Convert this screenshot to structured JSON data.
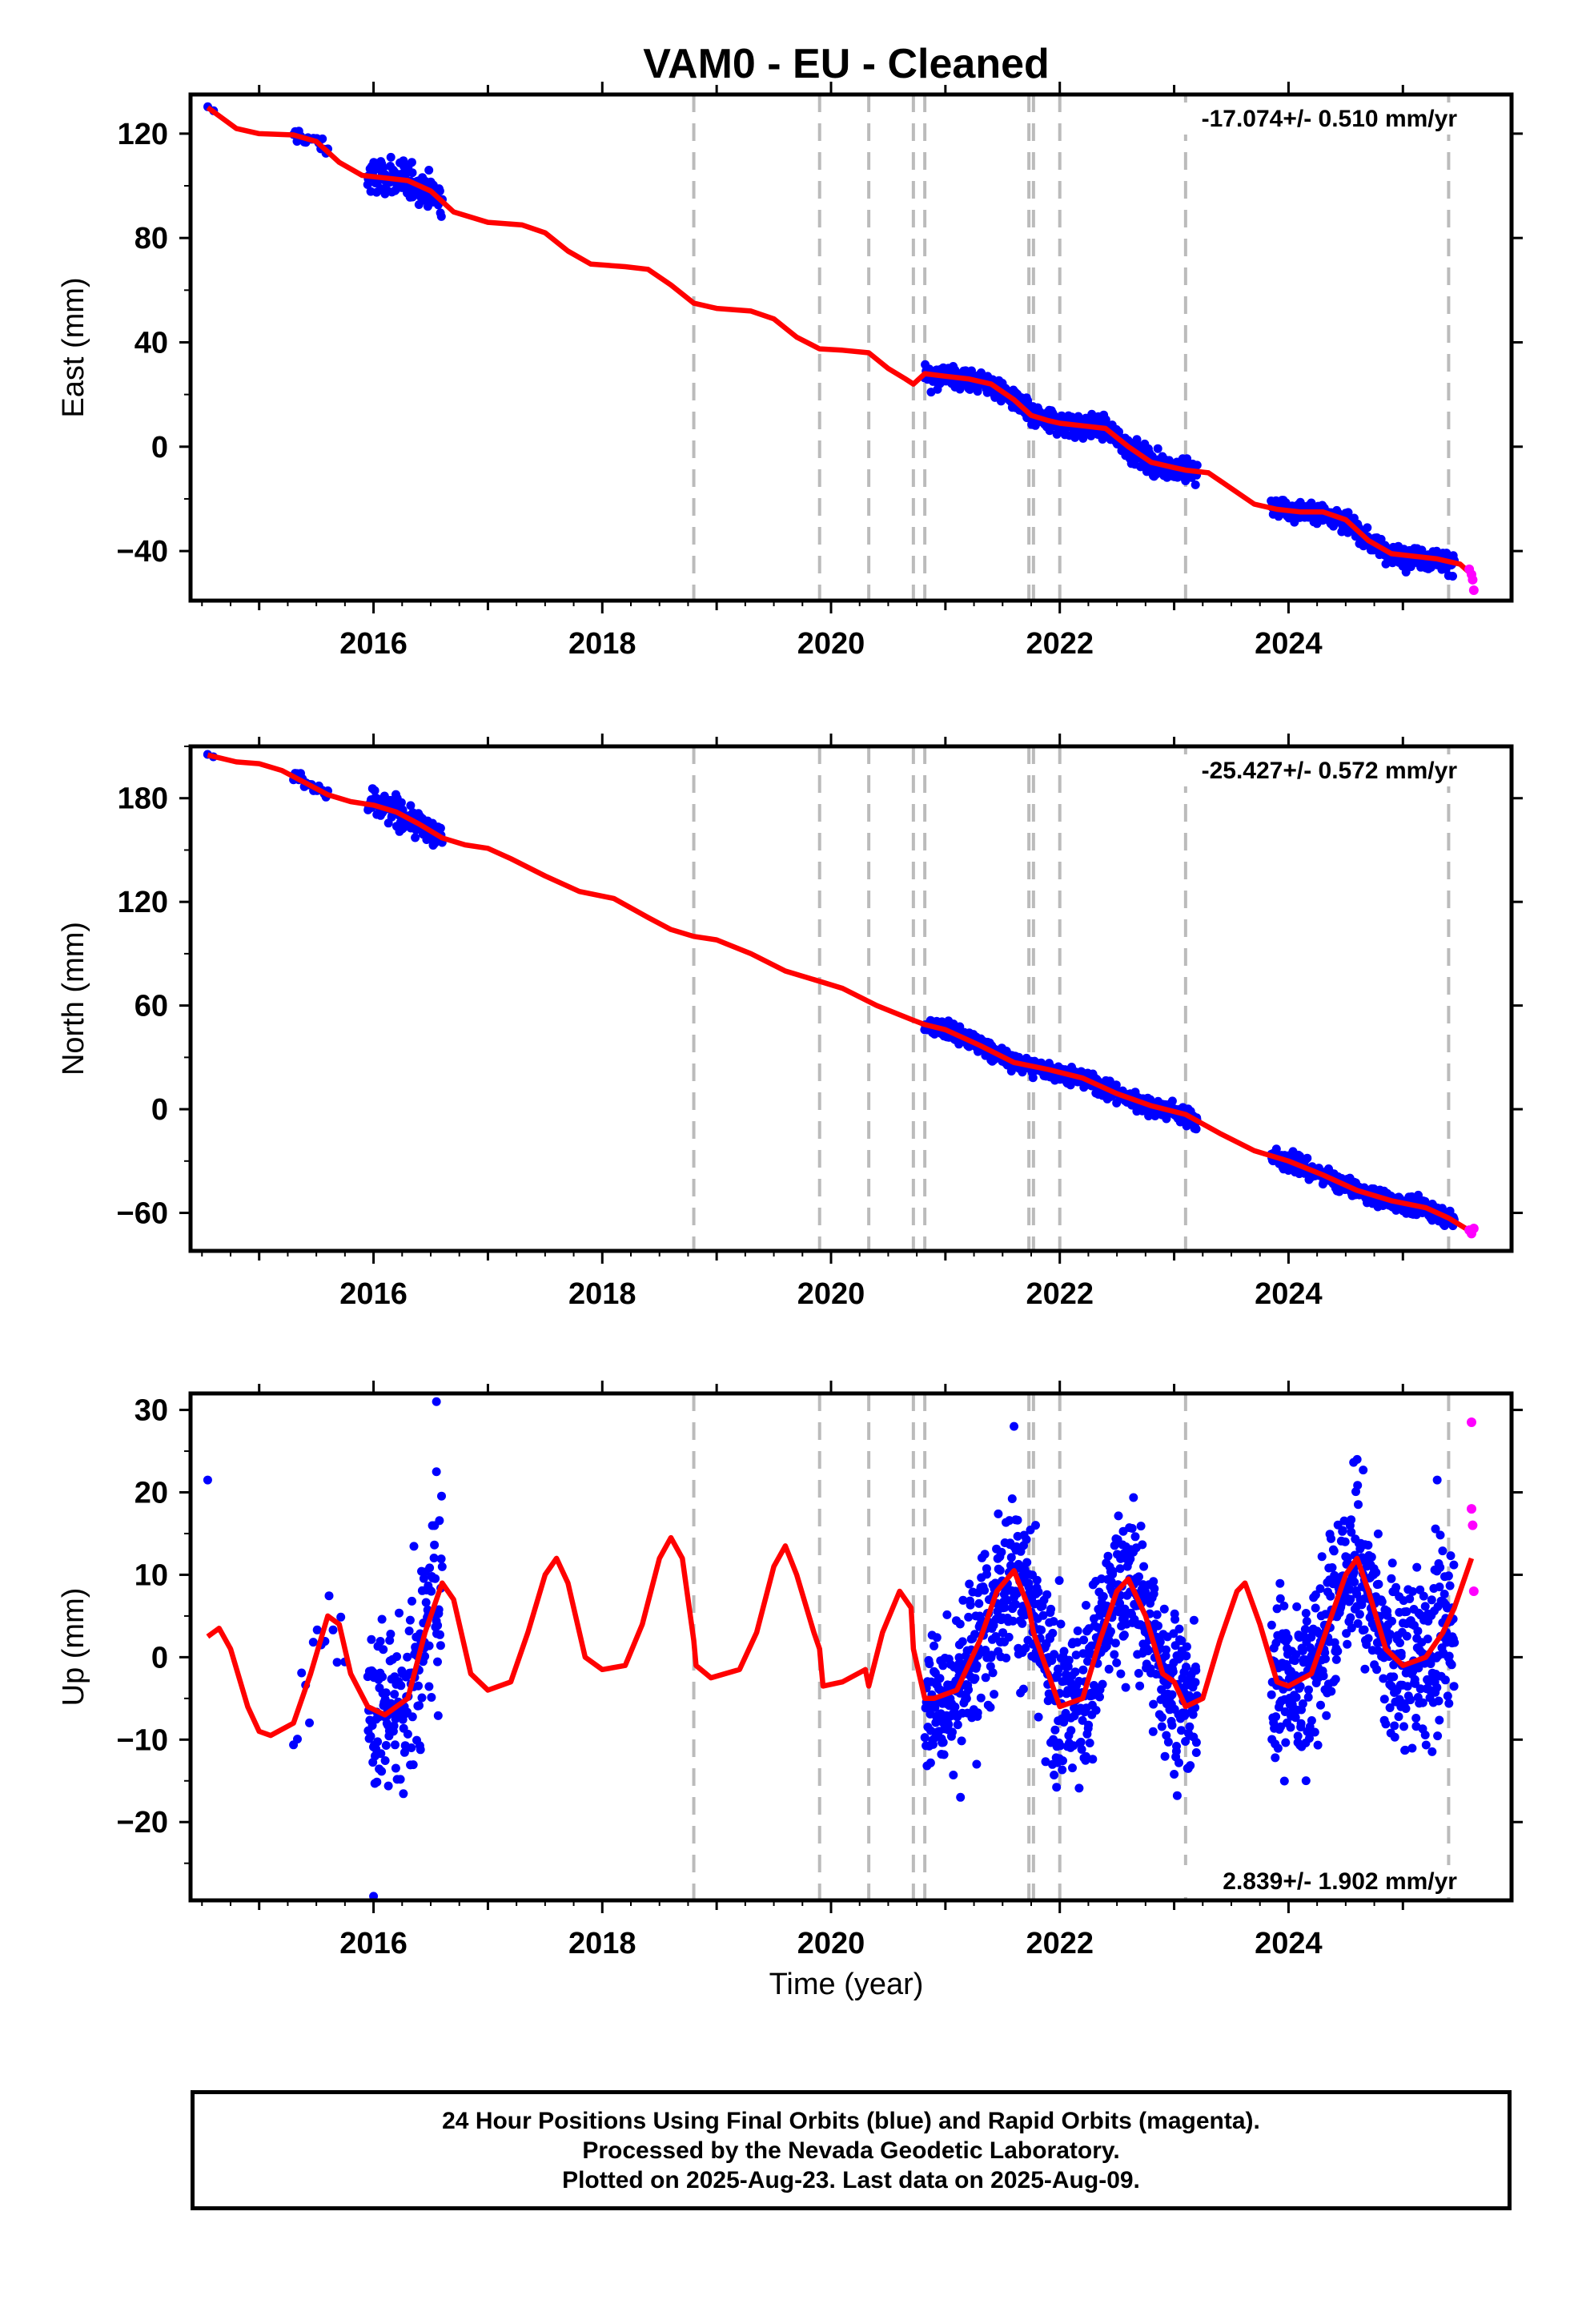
{
  "title": "VAM0  - EU - Cleaned",
  "xlabel": "Time (year)",
  "caption": [
    "24 Hour Positions Using Final Orbits (blue) and Rapid Orbits (magenta).",
    "Processed by the Nevada Geodetic Laboratory.",
    "Plotted on 2025-Aug-23. Last data on 2025-Aug-09."
  ],
  "colors": {
    "final": "#0000ff",
    "rapid": "#ff00ff",
    "model": "#ff0000",
    "events": "#bbbbbb",
    "axes": "#000000"
  },
  "chart_data": [
    {
      "type": "scatter",
      "ylabel": "East (mm)",
      "rate_text": "-17.074+/- 0.510 mm/yr",
      "xlim": [
        2014.4,
        2025.95
      ],
      "ylim": [
        -59,
        135
      ],
      "yticks": [
        120,
        80,
        40,
        0,
        -40
      ],
      "xticks": [
        2016,
        2018,
        2020,
        2022,
        2024
      ],
      "event_lines": [
        2018.8,
        2019.9,
        2020.33,
        2020.72,
        2020.82,
        2021.73,
        2021.77,
        2022.0,
        2023.1,
        2025.4
      ],
      "model": [
        [
          2014.55,
          130
        ],
        [
          2014.8,
          122
        ],
        [
          2015.0,
          120
        ],
        [
          2015.3,
          119.5
        ],
        [
          2015.5,
          117
        ],
        [
          2015.7,
          109
        ],
        [
          2015.9,
          104
        ],
        [
          2016.1,
          103
        ],
        [
          2016.3,
          102
        ],
        [
          2016.5,
          98
        ],
        [
          2016.7,
          90
        ],
        [
          2017.0,
          86
        ],
        [
          2017.3,
          85
        ],
        [
          2017.5,
          82
        ],
        [
          2017.7,
          75
        ],
        [
          2017.9,
          70
        ],
        [
          2018.2,
          69
        ],
        [
          2018.4,
          68
        ],
        [
          2018.6,
          62
        ],
        [
          2018.8,
          55
        ],
        [
          2019.0,
          53
        ],
        [
          2019.3,
          52
        ],
        [
          2019.5,
          49
        ],
        [
          2019.7,
          42
        ],
        [
          2019.9,
          37.5
        ],
        [
          2020.1,
          37
        ],
        [
          2020.33,
          36
        ],
        [
          2020.5,
          30
        ],
        [
          2020.65,
          26
        ],
        [
          2020.72,
          24
        ],
        [
          2020.82,
          28
        ],
        [
          2021.0,
          27
        ],
        [
          2021.2,
          26
        ],
        [
          2021.4,
          24
        ],
        [
          2021.6,
          18
        ],
        [
          2021.75,
          12
        ],
        [
          2021.9,
          10
        ],
        [
          2022.0,
          9
        ],
        [
          2022.2,
          8
        ],
        [
          2022.4,
          7
        ],
        [
          2022.6,
          0
        ],
        [
          2022.8,
          -6
        ],
        [
          2023.0,
          -8
        ],
        [
          2023.1,
          -9
        ],
        [
          2023.3,
          -10
        ],
        [
          2023.5,
          -16
        ],
        [
          2023.7,
          -22
        ],
        [
          2023.9,
          -24
        ],
        [
          2024.1,
          -25
        ],
        [
          2024.3,
          -25
        ],
        [
          2024.5,
          -28
        ],
        [
          2024.7,
          -36
        ],
        [
          2024.9,
          -41
        ],
        [
          2025.1,
          -42
        ],
        [
          2025.3,
          -43
        ],
        [
          2025.5,
          -45
        ],
        [
          2025.6,
          -49
        ]
      ],
      "data_spans": [
        {
          "x0": 2014.55,
          "x1": 2014.6,
          "n": 2,
          "offset": 0,
          "noise": 0.5
        },
        {
          "x0": 2015.3,
          "x1": 2015.6,
          "n": 20,
          "offset": 0,
          "noise": 2
        },
        {
          "x0": 2015.95,
          "x1": 2016.6,
          "n": 130,
          "offset": 0,
          "noise": 3.5
        },
        {
          "x0": 2020.82,
          "x1": 2023.2,
          "n": 520,
          "offset": 0,
          "noise": 2.2
        },
        {
          "x0": 2023.85,
          "x1": 2025.45,
          "n": 360,
          "offset": 0,
          "noise": 2
        }
      ],
      "rapid_points": [
        [
          2025.58,
          -47
        ],
        [
          2025.6,
          -49
        ],
        [
          2025.61,
          -51
        ],
        [
          2025.62,
          -55
        ]
      ]
    },
    {
      "type": "scatter",
      "ylabel": "North (mm)",
      "rate_text": "-25.427+/- 0.572 mm/yr",
      "xlim": [
        2014.4,
        2025.95
      ],
      "ylim": [
        -82,
        210
      ],
      "yticks": [
        180,
        120,
        60,
        0,
        -60
      ],
      "xticks": [
        2016,
        2018,
        2020,
        2022,
        2024
      ],
      "event_lines": [
        2018.8,
        2019.9,
        2020.33,
        2020.72,
        2020.82,
        2021.73,
        2021.77,
        2022.0,
        2023.1,
        2025.4
      ],
      "model": [
        [
          2014.55,
          205
        ],
        [
          2014.8,
          201
        ],
        [
          2015.0,
          200
        ],
        [
          2015.2,
          196
        ],
        [
          2015.4,
          189
        ],
        [
          2015.6,
          182
        ],
        [
          2015.8,
          178
        ],
        [
          2016.0,
          176
        ],
        [
          2016.2,
          172
        ],
        [
          2016.4,
          165
        ],
        [
          2016.6,
          157
        ],
        [
          2016.8,
          153
        ],
        [
          2017.0,
          151
        ],
        [
          2017.2,
          145
        ],
        [
          2017.5,
          135
        ],
        [
          2017.8,
          126
        ],
        [
          2018.1,
          122
        ],
        [
          2018.4,
          111
        ],
        [
          2018.6,
          104
        ],
        [
          2018.8,
          100
        ],
        [
          2019.0,
          98
        ],
        [
          2019.3,
          90
        ],
        [
          2019.6,
          80
        ],
        [
          2019.9,
          74
        ],
        [
          2020.1,
          70
        ],
        [
          2020.4,
          60
        ],
        [
          2020.7,
          52
        ],
        [
          2020.82,
          49
        ],
        [
          2021.0,
          46
        ],
        [
          2021.3,
          37
        ],
        [
          2021.6,
          27
        ],
        [
          2021.9,
          23
        ],
        [
          2022.2,
          18
        ],
        [
          2022.5,
          9
        ],
        [
          2022.8,
          2
        ],
        [
          2023.1,
          -3
        ],
        [
          2023.4,
          -14
        ],
        [
          2023.7,
          -24
        ],
        [
          2024.0,
          -30
        ],
        [
          2024.3,
          -38
        ],
        [
          2024.6,
          -47
        ],
        [
          2024.9,
          -53
        ],
        [
          2025.2,
          -57
        ],
        [
          2025.4,
          -63
        ],
        [
          2025.6,
          -71
        ]
      ],
      "data_spans": [
        {
          "x0": 2014.55,
          "x1": 2014.6,
          "n": 2,
          "offset": 0,
          "noise": 0.5
        },
        {
          "x0": 2015.3,
          "x1": 2015.6,
          "n": 20,
          "offset": 0,
          "noise": 2
        },
        {
          "x0": 2015.95,
          "x1": 2016.6,
          "n": 130,
          "offset": 0,
          "noise": 4
        },
        {
          "x0": 2020.82,
          "x1": 2023.2,
          "n": 520,
          "offset": 0,
          "noise": 2.5
        },
        {
          "x0": 2023.85,
          "x1": 2025.45,
          "n": 360,
          "offset": 0,
          "noise": 2.5
        }
      ],
      "rapid_points": [
        [
          2025.58,
          -70
        ],
        [
          2025.6,
          -72
        ],
        [
          2025.62,
          -69
        ]
      ]
    },
    {
      "type": "scatter",
      "ylabel": "Up (mm)",
      "rate_text": "2.839+/- 1.902 mm/yr",
      "xlim": [
        2014.4,
        2025.95
      ],
      "ylim": [
        -29.5,
        32
      ],
      "yticks": [
        30,
        20,
        10,
        0,
        -10,
        -20
      ],
      "xticks": [
        2016,
        2018,
        2020,
        2022,
        2024
      ],
      "event_lines": [
        2018.8,
        2019.9,
        2020.33,
        2020.72,
        2020.82,
        2021.73,
        2021.77,
        2022.0,
        2023.1,
        2025.4
      ],
      "model": [
        [
          2014.55,
          2.5
        ],
        [
          2014.65,
          3.5
        ],
        [
          2014.75,
          1
        ],
        [
          2014.9,
          -6
        ],
        [
          2015.0,
          -9
        ],
        [
          2015.1,
          -9.5
        ],
        [
          2015.3,
          -8
        ],
        [
          2015.45,
          -2
        ],
        [
          2015.6,
          5
        ],
        [
          2015.7,
          4
        ],
        [
          2015.8,
          -2
        ],
        [
          2015.95,
          -6
        ],
        [
          2016.1,
          -7
        ],
        [
          2016.3,
          -5
        ],
        [
          2016.45,
          3
        ],
        [
          2016.6,
          9
        ],
        [
          2016.7,
          7
        ],
        [
          2016.85,
          -2
        ],
        [
          2017.0,
          -4
        ],
        [
          2017.2,
          -3
        ],
        [
          2017.35,
          3
        ],
        [
          2017.5,
          10
        ],
        [
          2017.6,
          12
        ],
        [
          2017.7,
          9
        ],
        [
          2017.85,
          0
        ],
        [
          2018.0,
          -1.5
        ],
        [
          2018.2,
          -1
        ],
        [
          2018.35,
          4
        ],
        [
          2018.5,
          12
        ],
        [
          2018.6,
          14.5
        ],
        [
          2018.7,
          12
        ],
        [
          2018.8,
          2
        ],
        [
          2018.82,
          -1
        ],
        [
          2018.95,
          -2.5
        ],
        [
          2019.2,
          -1.5
        ],
        [
          2019.35,
          3
        ],
        [
          2019.5,
          11
        ],
        [
          2019.6,
          13.5
        ],
        [
          2019.7,
          10
        ],
        [
          2019.85,
          3
        ],
        [
          2019.9,
          1
        ],
        [
          2019.93,
          -3.5
        ],
        [
          2020.1,
          -3
        ],
        [
          2020.3,
          -1.5
        ],
        [
          2020.33,
          -3.5
        ],
        [
          2020.45,
          3
        ],
        [
          2020.6,
          8
        ],
        [
          2020.7,
          6
        ],
        [
          2020.72,
          1
        ],
        [
          2020.82,
          -5
        ],
        [
          2020.9,
          -5
        ],
        [
          2021.1,
          -4
        ],
        [
          2021.3,
          2
        ],
        [
          2021.45,
          8
        ],
        [
          2021.6,
          10.5
        ],
        [
          2021.73,
          6
        ],
        [
          2021.77,
          3
        ],
        [
          2021.9,
          -2
        ],
        [
          2022.0,
          -6
        ],
        [
          2022.2,
          -5
        ],
        [
          2022.35,
          2
        ],
        [
          2022.5,
          8
        ],
        [
          2022.6,
          9.5
        ],
        [
          2022.75,
          5
        ],
        [
          2022.9,
          -2
        ],
        [
          2023.0,
          -3
        ],
        [
          2023.1,
          -6
        ],
        [
          2023.25,
          -5
        ],
        [
          2023.4,
          2
        ],
        [
          2023.55,
          8
        ],
        [
          2023.62,
          9
        ],
        [
          2023.75,
          4
        ],
        [
          2023.9,
          -3
        ],
        [
          2024.0,
          -3.5
        ],
        [
          2024.2,
          -2
        ],
        [
          2024.35,
          4
        ],
        [
          2024.5,
          10
        ],
        [
          2024.6,
          12
        ],
        [
          2024.7,
          8
        ],
        [
          2024.85,
          1
        ],
        [
          2025.0,
          -1
        ],
        [
          2025.2,
          0
        ],
        [
          2025.35,
          3
        ],
        [
          2025.45,
          6
        ],
        [
          2025.6,
          12
        ]
      ],
      "data_spans": [
        {
          "x0": 2015.3,
          "x1": 2015.75,
          "n": 14,
          "offset": 0,
          "noise": 4
        },
        {
          "x0": 2015.95,
          "x1": 2016.6,
          "n": 170,
          "offset": 0,
          "noise": 5.5
        },
        {
          "x0": 2020.82,
          "x1": 2023.2,
          "n": 760,
          "offset": 0,
          "noise": 4.8
        },
        {
          "x0": 2023.85,
          "x1": 2025.45,
          "n": 520,
          "offset": 0,
          "noise": 4.8
        }
      ],
      "outlier_points": [
        [
          2014.55,
          21.5
        ],
        [
          2016.0,
          -29
        ],
        [
          2016.55,
          31
        ],
        [
          2016.55,
          22.5
        ],
        [
          2021.6,
          28
        ],
        [
          2024.6,
          24
        ],
        [
          2025.3,
          21.5
        ]
      ],
      "rapid_points": [
        [
          2025.6,
          28.5
        ],
        [
          2025.6,
          18
        ],
        [
          2025.61,
          16
        ],
        [
          2025.62,
          8
        ]
      ]
    }
  ]
}
